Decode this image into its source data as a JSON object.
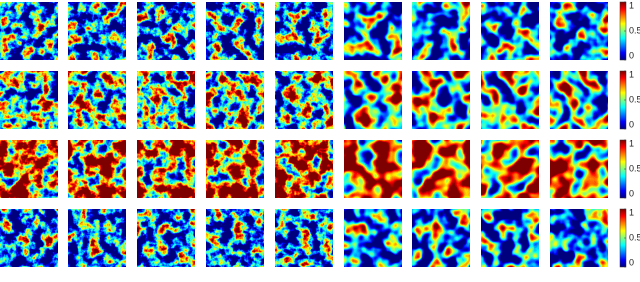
{
  "rows": [
    {
      "colorbar": {
        "ticks": [
          1,
          0.5,
          0
        ]
      }
    },
    {
      "colorbar": {
        "ticks": [
          1,
          0.5,
          0
        ]
      }
    },
    {
      "colorbar": {
        "ticks": [
          1,
          0.5,
          0
        ]
      }
    },
    {
      "colorbar": {
        "ticks": [
          1,
          0.5,
          0
        ]
      }
    }
  ]
}
